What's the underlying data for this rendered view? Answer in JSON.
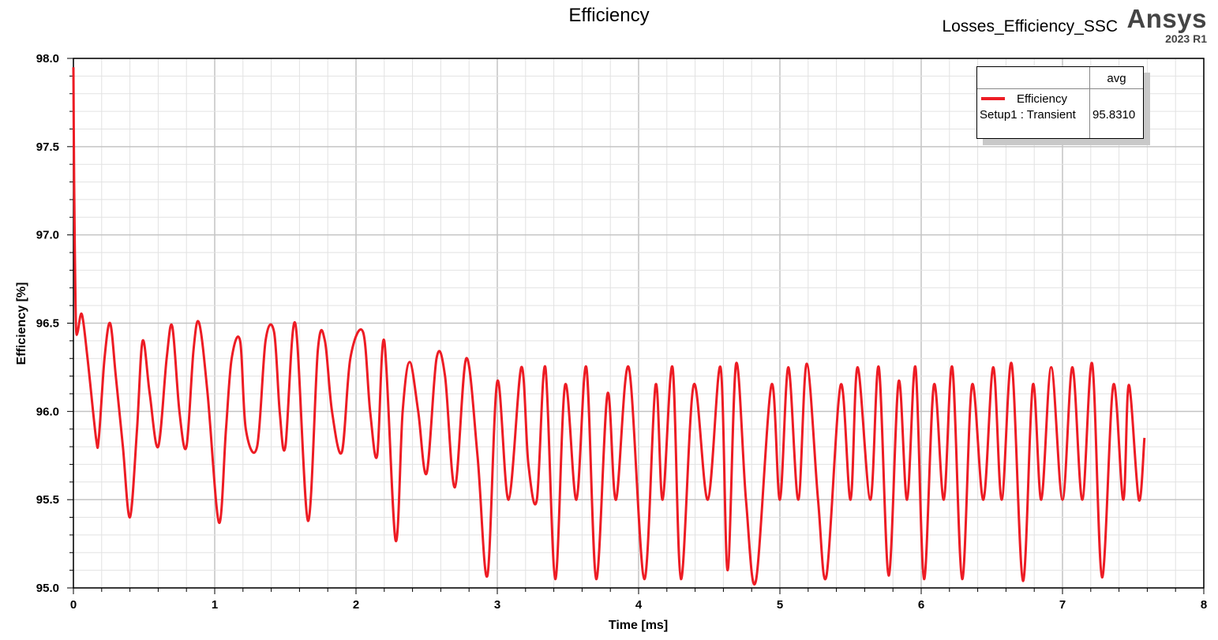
{
  "window": {
    "design_name": "Losses_Efficiency_SSC",
    "brand": "Ansys",
    "version": "2023 R1"
  },
  "chart_data": {
    "type": "line",
    "title": "Efficiency",
    "xlabel": "Time [ms]",
    "ylabel": "Efficiency [%]",
    "xlim": [
      0,
      8
    ],
    "ylim": [
      95.0,
      98.0
    ],
    "x_ticks": [
      "0",
      "1",
      "2",
      "3",
      "4",
      "5",
      "6",
      "7",
      "8"
    ],
    "y_ticks": [
      "95.0",
      "95.5",
      "96.0",
      "96.5",
      "97.0",
      "97.5",
      "98.0"
    ],
    "grid": true,
    "legend_position": "top-right",
    "series_color": "#ed1c24",
    "series": [
      {
        "name": "Efficiency",
        "legend_label": "Setup1 : Transient",
        "avg": "95.8310",
        "x": [
          0,
          0.005,
          0.01,
          0.015,
          0.02,
          0.03,
          0.06,
          0.1,
          0.16,
          0.18,
          0.22,
          0.26,
          0.3,
          0.35,
          0.4,
          0.45,
          0.49,
          0.54,
          0.6,
          0.66,
          0.7,
          0.75,
          0.8,
          0.85,
          0.89,
          0.95,
          1.03,
          1.08,
          1.12,
          1.18,
          1.22,
          1.3,
          1.36,
          1.42,
          1.46,
          1.5,
          1.57,
          1.66,
          1.73,
          1.78,
          1.83,
          1.9,
          1.96,
          2.05,
          2.1,
          2.15,
          2.2,
          2.28,
          2.33,
          2.38,
          2.44,
          2.5,
          2.57,
          2.63,
          2.7,
          2.78,
          2.86,
          2.93,
          3.0,
          3.08,
          3.17,
          3.22,
          3.28,
          3.34,
          3.41,
          3.48,
          3.56,
          3.63,
          3.7,
          3.78,
          3.84,
          3.93,
          4.04,
          4.12,
          4.17,
          4.24,
          4.3,
          4.39,
          4.49,
          4.58,
          4.63,
          4.69,
          4.76,
          4.83,
          4.94,
          5.0,
          5.06,
          5.13,
          5.19,
          5.27,
          5.33,
          5.43,
          5.5,
          5.55,
          5.64,
          5.7,
          5.77,
          5.84,
          5.9,
          5.96,
          6.02,
          6.09,
          6.16,
          6.22,
          6.29,
          6.36,
          6.44,
          6.51,
          6.57,
          6.64,
          6.72,
          6.79,
          6.85,
          6.92,
          7.0,
          7.07,
          7.14,
          7.21,
          7.28,
          7.36,
          7.43,
          7.47,
          7.54,
          7.58
        ],
        "y": [
          97.95,
          97.3,
          96.9,
          96.6,
          96.45,
          96.45,
          96.55,
          96.3,
          95.85,
          95.85,
          96.3,
          96.5,
          96.2,
          95.8,
          95.4,
          95.9,
          96.4,
          96.1,
          95.8,
          96.3,
          96.48,
          96.0,
          95.8,
          96.35,
          96.5,
          96.1,
          95.37,
          95.9,
          96.3,
          96.4,
          95.9,
          95.8,
          96.4,
          96.45,
          96.0,
          95.8,
          96.5,
          95.38,
          96.35,
          96.4,
          96.0,
          95.77,
          96.3,
          96.45,
          96.0,
          95.75,
          96.4,
          95.27,
          96.0,
          96.28,
          96.0,
          95.65,
          96.3,
          96.2,
          95.57,
          96.3,
          95.75,
          95.07,
          96.17,
          95.5,
          96.25,
          95.7,
          95.5,
          96.25,
          95.05,
          96.15,
          95.5,
          96.25,
          95.05,
          96.1,
          95.5,
          96.25,
          95.05,
          96.15,
          95.5,
          96.25,
          95.05,
          96.15,
          95.5,
          96.25,
          95.1,
          96.27,
          95.5,
          95.04,
          96.15,
          95.5,
          96.25,
          95.5,
          96.27,
          95.5,
          95.07,
          96.15,
          95.5,
          96.25,
          95.5,
          96.25,
          95.07,
          96.17,
          95.5,
          96.25,
          95.05,
          96.15,
          95.5,
          96.25,
          95.05,
          96.15,
          95.5,
          96.25,
          95.5,
          96.27,
          95.04,
          96.15,
          95.5,
          96.25,
          95.5,
          96.25,
          95.5,
          96.27,
          95.06,
          96.15,
          95.5,
          96.15,
          95.5,
          95.85
        ]
      }
    ]
  }
}
